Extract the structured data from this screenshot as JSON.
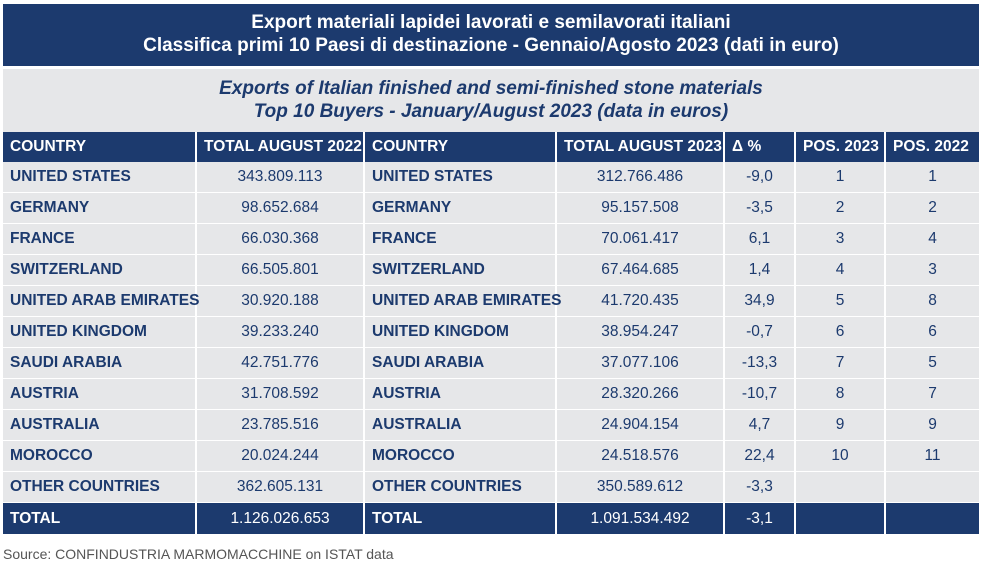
{
  "title_it_line1": "Export materiali lapidei lavorati e semilavorati italiani",
  "title_it_line2": "Classifica primi 10 Paesi di destinazione - Gennaio/Agosto 2023 (dati in euro)",
  "title_en_line1": "Exports of Italian finished and semi-finished stone materials",
  "title_en_line2": "Top 10 Buyers - January/August 2023 (data in euros)",
  "headers": [
    "COUNTRY",
    "TOTAL AUGUST 2022",
    "COUNTRY",
    "TOTAL AUGUST 2023",
    "Δ %",
    "POS. 2023",
    "POS. 2022"
  ],
  "rows": [
    [
      "UNITED STATES",
      "343.809.113",
      "UNITED STATES",
      "312.766.486",
      "-9,0",
      "1",
      "1"
    ],
    [
      "GERMANY",
      "98.652.684",
      "GERMANY",
      "95.157.508",
      "-3,5",
      "2",
      "2"
    ],
    [
      "FRANCE",
      "66.030.368",
      "FRANCE",
      "70.061.417",
      "6,1",
      "3",
      "4"
    ],
    [
      "SWITZERLAND",
      "66.505.801",
      "SWITZERLAND",
      "67.464.685",
      "1,4",
      "4",
      "3"
    ],
    [
      "UNITED ARAB EMIRATES",
      "30.920.188",
      "UNITED ARAB EMIRATES",
      "41.720.435",
      "34,9",
      "5",
      "8"
    ],
    [
      "UNITED KINGDOM",
      "39.233.240",
      "UNITED KINGDOM",
      "38.954.247",
      "-0,7",
      "6",
      "6"
    ],
    [
      "SAUDI ARABIA",
      "42.751.776",
      "SAUDI ARABIA",
      "37.077.106",
      "-13,3",
      "7",
      "5"
    ],
    [
      "AUSTRIA",
      "31.708.592",
      "AUSTRIA",
      "28.320.266",
      "-10,7",
      "8",
      "7"
    ],
    [
      "AUSTRALIA",
      "23.785.516",
      "AUSTRALIA",
      "24.904.154",
      "4,7",
      "9",
      "9"
    ],
    [
      "MOROCCO",
      "20.024.244",
      "MOROCCO",
      "24.518.576",
      "22,4",
      "10",
      "11"
    ],
    [
      "OTHER COUNTRIES",
      "362.605.131",
      "OTHER COUNTRIES",
      "350.589.612",
      "-3,3",
      "",
      ""
    ]
  ],
  "total": [
    "TOTAL",
    "1.126.026.653",
    "TOTAL",
    "1.091.534.492",
    "-3,1",
    "",
    ""
  ],
  "source": "Source: CONFINDUSTRIA MARMOMACCHINE on ISTAT data"
}
